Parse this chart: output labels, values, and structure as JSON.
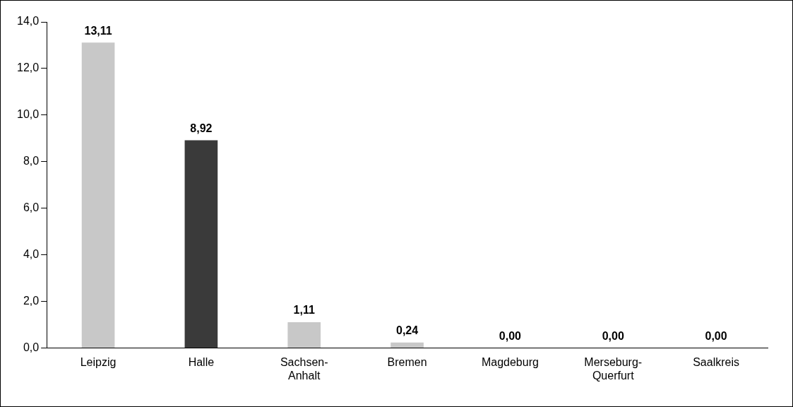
{
  "chart_data": {
    "type": "bar",
    "categories": [
      "Leipzig",
      "Halle",
      "Sachsen-Anhalt",
      "Bremen",
      "Magdeburg",
      "Merseburg-Querfurt",
      "Saalkreis"
    ],
    "values": [
      13.11,
      8.92,
      1.11,
      0.24,
      0,
      0,
      0
    ],
    "colors": [
      "#c8c8c8",
      "#3a3a3a",
      "#c8c8c8",
      "#c8c8c8",
      "#c8c8c8",
      "#c8c8c8",
      "#c8c8c8"
    ],
    "value_labels": [
      "13,11",
      "8,92",
      "1,11",
      "0,24",
      "0,00",
      "0,00",
      "0,00"
    ],
    "ylim": [
      0,
      14
    ],
    "yticks": [
      {
        "value": 0,
        "label": "0,0"
      },
      {
        "value": 2,
        "label": "2,0"
      },
      {
        "value": 4,
        "label": "4,0"
      },
      {
        "value": 6,
        "label": "6,0"
      },
      {
        "value": 8,
        "label": "8,0"
      },
      {
        "value": 10,
        "label": "10,0"
      },
      {
        "value": 12,
        "label": "12,0"
      },
      {
        "value": 14,
        "label": "14,0"
      }
    ],
    "grid": false
  }
}
